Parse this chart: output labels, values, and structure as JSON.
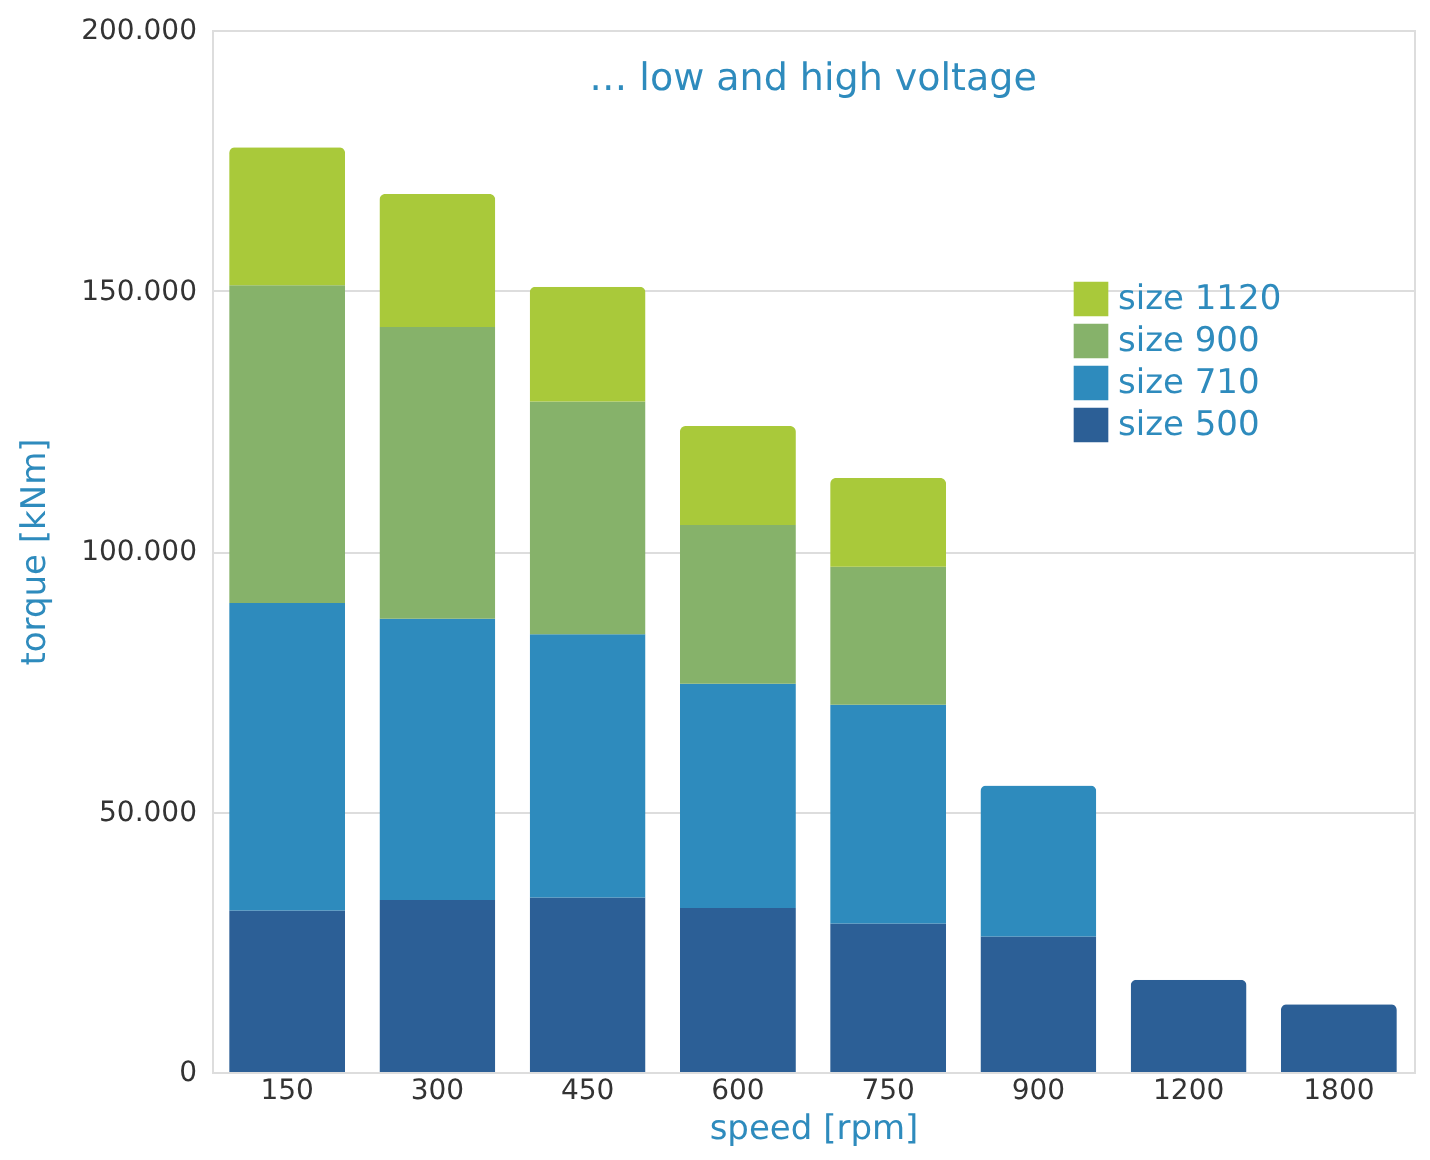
{
  "chart_data": {
    "type": "bar",
    "stacked": true,
    "title": "… low and high voltage",
    "xlabel": "speed [rpm]",
    "ylabel": "torque [kNm]",
    "categories": [
      "150",
      "300",
      "450",
      "600",
      "750",
      "900",
      "1200",
      "1800"
    ],
    "series": [
      {
        "name": "size 500",
        "color": "#2c5f96",
        "values": [
          31000,
          33000,
          33500,
          31500,
          28500,
          26000,
          17700,
          13000
        ]
      },
      {
        "name": "size 710",
        "color": "#2e8bbd",
        "values": [
          59000,
          54000,
          50500,
          43000,
          42000,
          29000,
          null,
          null
        ]
      },
      {
        "name": "size 900",
        "color": "#86b26a",
        "values": [
          61000,
          56000,
          44700,
          30500,
          26500,
          null,
          null,
          null
        ]
      },
      {
        "name": "size 1120",
        "color": "#a9c93a",
        "values": [
          26500,
          25500,
          22000,
          19000,
          17000,
          null,
          null,
          null
        ]
      }
    ],
    "ylim": [
      0,
      200000
    ],
    "yticks": [
      {
        "value": 0,
        "label": "0"
      },
      {
        "value": 50000,
        "label": "50.000"
      },
      {
        "value": 100000,
        "label": "100.000"
      },
      {
        "value": 150000,
        "label": "150.000"
      },
      {
        "value": 200000,
        "label": "200.000"
      }
    ],
    "grid": "y",
    "legend": "right"
  }
}
